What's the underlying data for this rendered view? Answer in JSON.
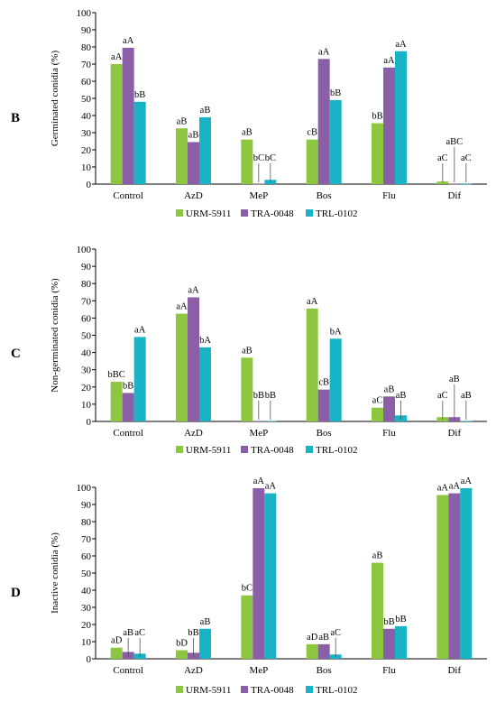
{
  "colors": {
    "URM-5911": "#8dc73f",
    "TRA-0048": "#8a5fa8",
    "TRL-0102": "#19b3c6"
  },
  "chart_data": [
    {
      "type": "bar",
      "panel_label": "B",
      "ylabel": "Germinated conidia (%)",
      "ylim": [
        0,
        100
      ],
      "yticks": [
        0,
        10,
        20,
        30,
        40,
        50,
        60,
        70,
        80,
        90,
        100
      ],
      "categories": [
        "Control",
        "AzD",
        "MeP",
        "Bos",
        "Flu",
        "Dif"
      ],
      "legend_position": "bottom",
      "series": [
        {
          "name": "URM-5911",
          "values": [
            70,
            32.5,
            26,
            26,
            35.5,
            1.5
          ],
          "labels": [
            "aA",
            "aB",
            "aB",
            "cB",
            "bB",
            "aC"
          ]
        },
        {
          "name": "TRA-0048",
          "values": [
            79.5,
            24.5,
            0.2,
            73,
            68,
            0.2
          ],
          "labels": [
            "aA",
            "aB",
            "bC",
            "aA",
            "aA",
            "aBC"
          ]
        },
        {
          "name": "TRL-0102",
          "values": [
            48,
            39,
            2.5,
            49,
            77.5,
            0.2
          ],
          "labels": [
            "bB",
            "aB",
            "bC",
            "bB",
            "aA",
            "aC"
          ]
        }
      ]
    },
    {
      "type": "bar",
      "panel_label": "C",
      "ylabel": "Non-germinated conidia (%)",
      "ylim": [
        0,
        100
      ],
      "yticks": [
        0,
        10,
        20,
        30,
        40,
        50,
        60,
        70,
        80,
        90,
        100
      ],
      "categories": [
        "Control",
        "AzD",
        "MeP",
        "Bos",
        "Flu",
        "Dif"
      ],
      "legend_position": "bottom",
      "series": [
        {
          "name": "URM-5911",
          "values": [
            23,
            62.5,
            37,
            65.5,
            8,
            2.5
          ],
          "labels": [
            "bBC",
            "aA",
            "aB",
            "aA",
            "aC",
            "aC"
          ]
        },
        {
          "name": "TRA-0048",
          "values": [
            16.5,
            72,
            0.3,
            18.5,
            14.5,
            2.5
          ],
          "labels": [
            "bB",
            "aA",
            "bB",
            "cB",
            "aB",
            "aB"
          ]
        },
        {
          "name": "TRL-0102",
          "values": [
            49,
            43,
            0.3,
            48,
            3.5,
            0.3
          ],
          "labels": [
            "aA",
            "bA",
            "bB",
            "bA",
            "aB",
            "aB"
          ]
        }
      ]
    },
    {
      "type": "bar",
      "panel_label": "D",
      "ylabel": "Inactive conidia (%)",
      "ylim": [
        0,
        100
      ],
      "yticks": [
        0,
        10,
        20,
        30,
        40,
        50,
        60,
        70,
        80,
        90,
        100
      ],
      "categories": [
        "Control",
        "AzD",
        "MeP",
        "Bos",
        "Flu",
        "Dif"
      ],
      "legend_position": "bottom",
      "series": [
        {
          "name": "URM-5911",
          "values": [
            6.5,
            5,
            37,
            8.5,
            56,
            95.5
          ],
          "labels": [
            "aD",
            "bD",
            "bC",
            "aD",
            "aB",
            "aA"
          ]
        },
        {
          "name": "TRA-0048",
          "values": [
            4,
            3.5,
            99.5,
            8.5,
            17.5,
            96.5
          ],
          "labels": [
            "aB",
            "bB",
            "aA",
            "aB",
            "bB",
            "aA"
          ]
        },
        {
          "name": "TRL-0102",
          "values": [
            3,
            17.5,
            96.5,
            2.5,
            19,
            99.5
          ],
          "labels": [
            "aC",
            "aB",
            "aA",
            "aC",
            "bB",
            "aA"
          ]
        }
      ]
    }
  ]
}
